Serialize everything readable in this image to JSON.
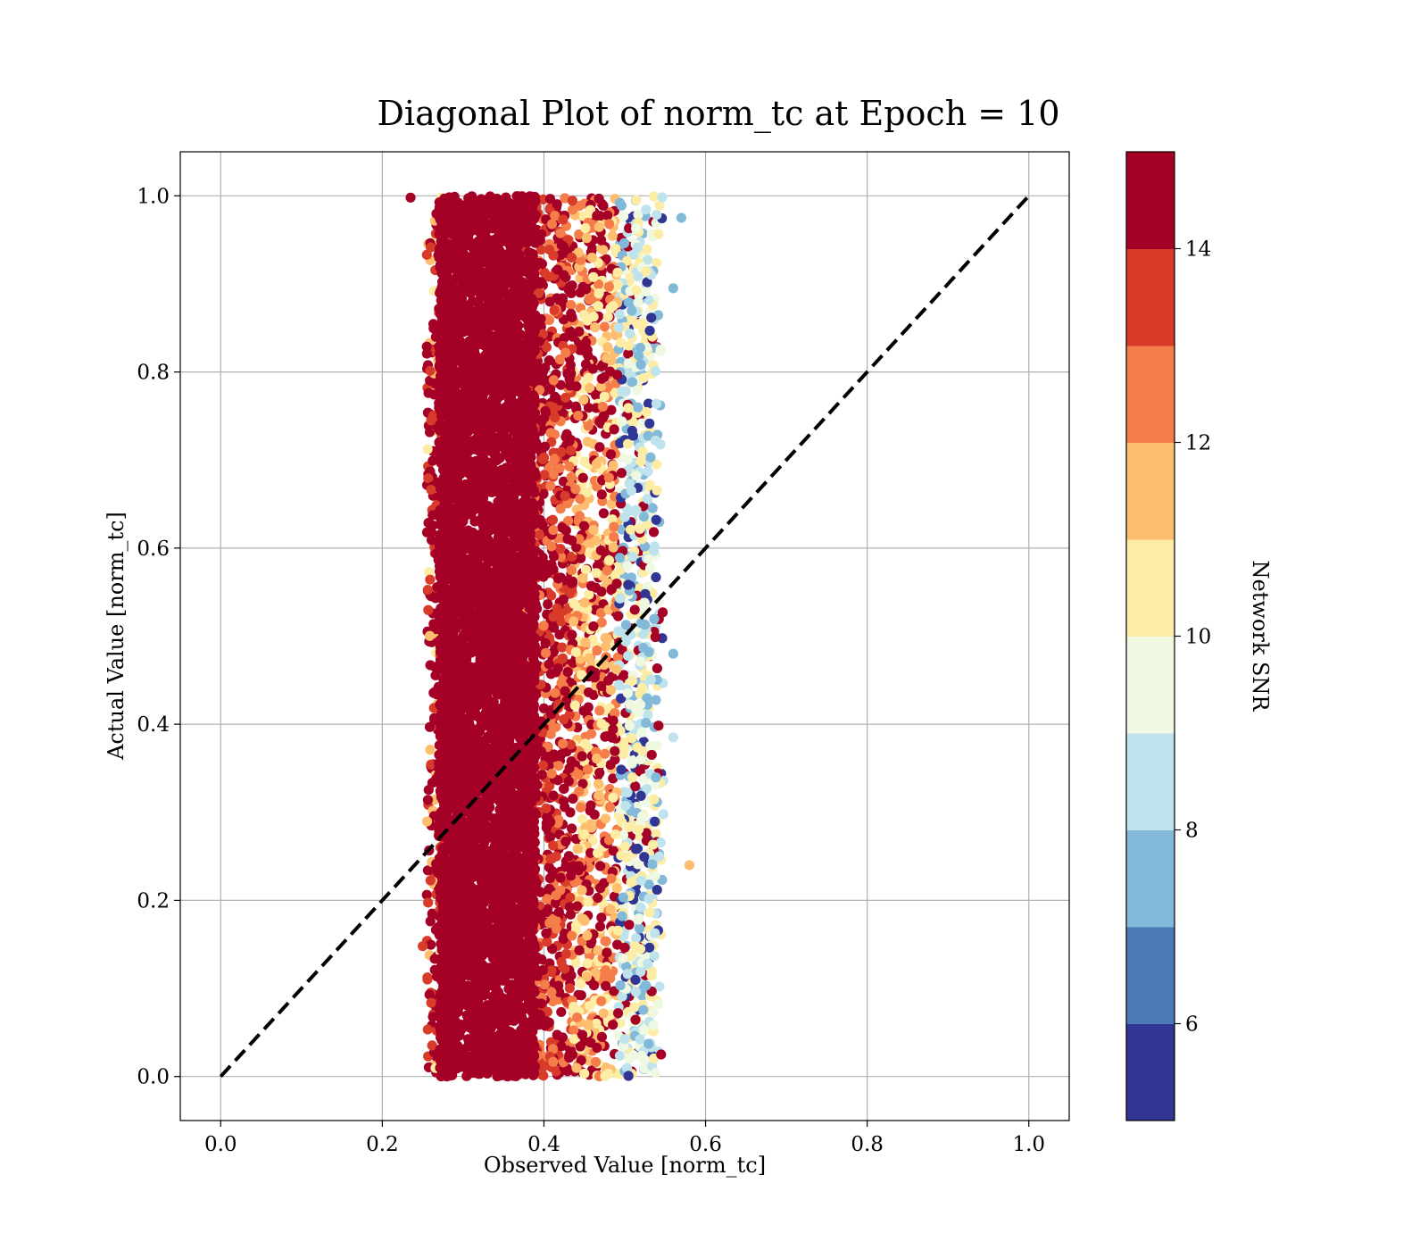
{
  "chart_data": {
    "type": "scatter",
    "title": "Diagonal Plot of norm_tc at Epoch = 10",
    "xlabel": "Observed Value [norm_tc]",
    "ylabel": "Actual Value [norm_tc]",
    "xlim": [
      -0.05,
      1.05
    ],
    "ylim": [
      -0.05,
      1.05
    ],
    "xticks": [
      "0.0",
      "0.2",
      "0.4",
      "0.6",
      "0.8",
      "1.0"
    ],
    "yticks": [
      "0.0",
      "0.2",
      "0.4",
      "0.6",
      "0.8",
      "1.0"
    ],
    "grid": true,
    "reference_line": {
      "style": "dashed",
      "color": "#000000",
      "from": [
        0,
        0
      ],
      "to": [
        1,
        1
      ]
    },
    "colorbar": {
      "label": "Network SNR",
      "range": [
        5,
        15
      ],
      "ticks": [
        "6",
        "8",
        "10",
        "12",
        "14"
      ],
      "levels": [
        {
          "from": 5,
          "to": 6,
          "color": "#313695"
        },
        {
          "from": 6,
          "to": 7,
          "color": "#4a7ab7"
        },
        {
          "from": 7,
          "to": 8,
          "color": "#83b9d8"
        },
        {
          "from": 8,
          "to": 9,
          "color": "#bfe3ed"
        },
        {
          "from": 9,
          "to": 10,
          "color": "#eff8e0"
        },
        {
          "from": 10,
          "to": 11,
          "color": "#fdeca4"
        },
        {
          "from": 11,
          "to": 12,
          "color": "#fdbe70"
        },
        {
          "from": 12,
          "to": 13,
          "color": "#f57d4a"
        },
        {
          "from": 13,
          "to": 14,
          "color": "#d93b2b"
        },
        {
          "from": 14,
          "to": 15,
          "color": "#a50026"
        }
      ]
    },
    "point_cloud": {
      "y_range": [
        0.0,
        1.0
      ],
      "dense_core_x": [
        0.27,
        0.39
      ],
      "scatter_x": [
        0.24,
        0.58
      ],
      "outliers": [
        {
          "x": 0.58,
          "y": 0.24,
          "snr": 11.5
        },
        {
          "x": 0.57,
          "y": 0.975,
          "snr": 7.5
        },
        {
          "x": 0.56,
          "y": 0.48,
          "snr": 7.5
        },
        {
          "x": 0.56,
          "y": 0.385,
          "snr": 8.5
        },
        {
          "x": 0.56,
          "y": 0.895,
          "snr": 7.5
        },
        {
          "x": 0.235,
          "y": 0.998,
          "snr": 14.5
        },
        {
          "x": 0.25,
          "y": 0.148,
          "snr": 13.5
        },
        {
          "x": 0.54,
          "y": 0.212,
          "snr": 5.5
        },
        {
          "x": 0.545,
          "y": 0.025,
          "snr": 14.5
        }
      ]
    }
  }
}
